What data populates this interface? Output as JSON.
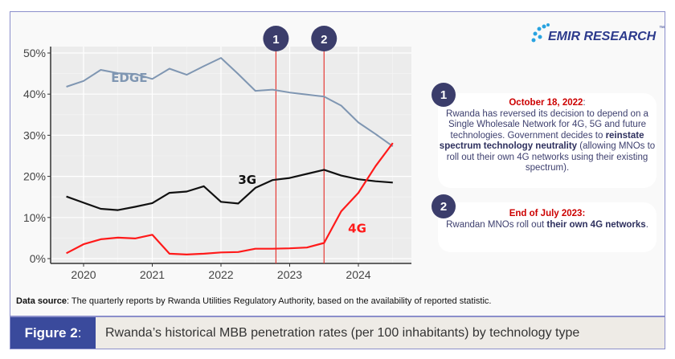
{
  "chart_data": {
    "type": "line",
    "title": "",
    "xlabel": "",
    "ylabel": "",
    "x_ticks": [
      "2020",
      "2021",
      "2022",
      "2023",
      "2024"
    ],
    "y_ticks": [
      "0%",
      "10%",
      "20%",
      "30%",
      "40%",
      "50%"
    ],
    "xlim": [
      2019.6,
      2024.7
    ],
    "ylim": [
      0,
      50
    ],
    "grid": true,
    "x": [
      2019.75,
      2020.0,
      2020.25,
      2020.5,
      2020.75,
      2021.0,
      2021.25,
      2021.5,
      2021.75,
      2022.0,
      2022.25,
      2022.5,
      2022.75,
      2023.0,
      2023.25,
      2023.5,
      2023.75,
      2024.0,
      2024.25,
      2024.5
    ],
    "series": [
      {
        "name": "EDGE",
        "color": "#7f96b2",
        "values": [
          41.8,
          43.2,
          45.9,
          45.1,
          44.9,
          43.7,
          46.2,
          44.7,
          46.8,
          48.8,
          44.9,
          40.8,
          41.1,
          40.4,
          39.9,
          39.4,
          37.2,
          33.1,
          30.3,
          27.3
        ]
      },
      {
        "name": "3G",
        "color": "#111111",
        "values": [
          15.1,
          13.6,
          12.1,
          11.8,
          12.6,
          13.5,
          16.0,
          16.3,
          17.6,
          13.8,
          13.4,
          17.2,
          19.1,
          19.6,
          20.6,
          21.6,
          20.2,
          19.3,
          18.8,
          18.5
        ]
      },
      {
        "name": "4G",
        "color": "#ff1a1a",
        "values": [
          1.3,
          3.5,
          4.7,
          5.1,
          4.9,
          5.8,
          1.2,
          1.0,
          1.2,
          1.5,
          1.6,
          2.4,
          2.4,
          2.5,
          2.7,
          3.8,
          11.5,
          16.0,
          22.5,
          28.1
        ]
      }
    ],
    "annotations": [
      {
        "label": "1",
        "x": 2022.8,
        "color": "#e53935"
      },
      {
        "label": "2",
        "x": 2023.5,
        "color": "#e53935"
      }
    ]
  },
  "logo": {
    "text": "EMIR RESEARCH",
    "tm": "™"
  },
  "notes": [
    {
      "badge": "1",
      "date": "October 18, 2022",
      "date_suffix": ":",
      "text1": "Rwanda has reversed its decision to depend on a Single Wholesale Network for 4G, 5G and future technologies. Government decides to ",
      "bold": "reinstate spectrum technology neutrality",
      "text2": " (allowing MNOs to roll out their own 4G networks using their existing spectrum)."
    },
    {
      "badge": "2",
      "date": "End of July 2023:",
      "date_suffix": "",
      "text1": "Rwandan MNOs roll out ",
      "bold": "their own 4G networks",
      "text2": "."
    }
  ],
  "source": {
    "label": "Data source",
    "text": ": The quarterly reports by Rwanda Utilities Regulatory Authority, based on the availability of reported statistic."
  },
  "caption": {
    "label": "Figure 2",
    "label_suffix": ":",
    "text": "Rwanda’s historical MBB penetration rates (per 100 inhabitants) by technology type"
  },
  "colors": {
    "accent": "#3a4a9c",
    "badge": "#3b3d6b",
    "event": "#cc0000"
  }
}
